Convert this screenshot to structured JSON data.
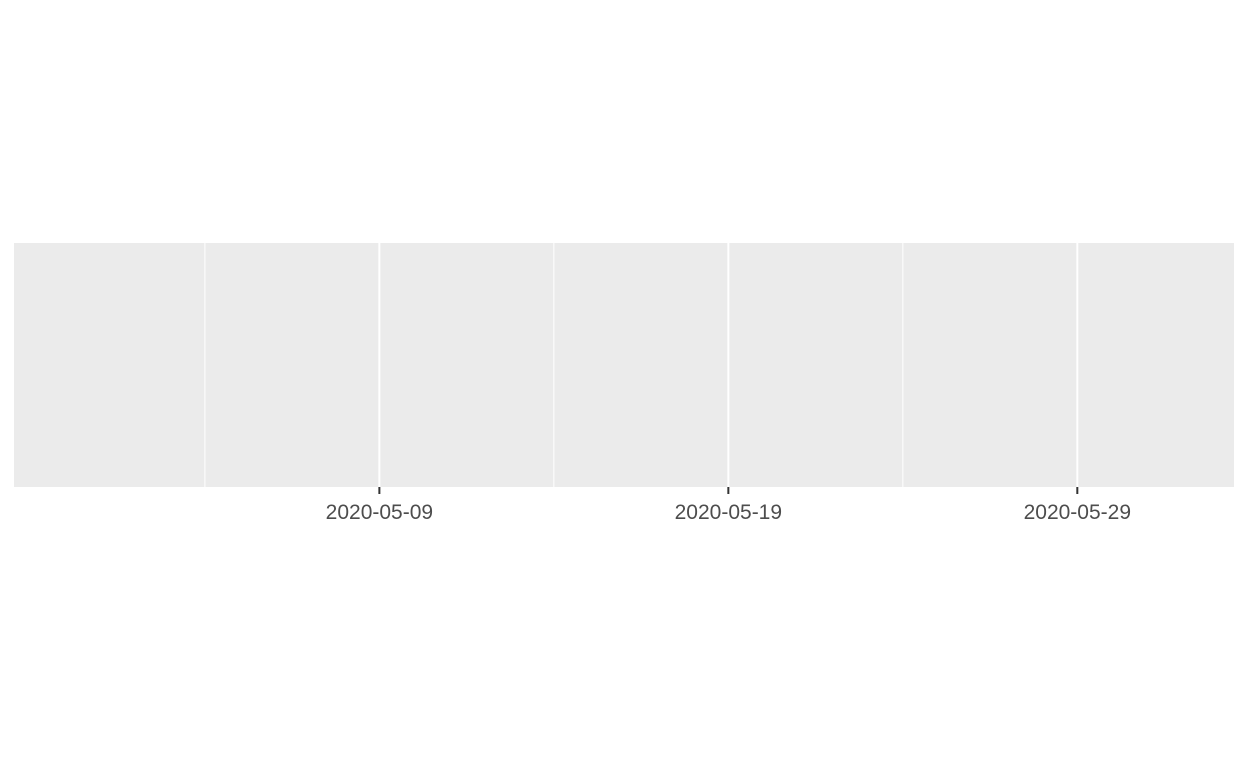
{
  "chart_data": {
    "type": "line",
    "title": "",
    "xlabel": "",
    "ylabel": "",
    "x_axis": {
      "scale": "date",
      "range": [
        "2020-04-29",
        "2020-06-02"
      ],
      "major_ticks": [
        "2020-05-09",
        "2020-05-19",
        "2020-05-29"
      ],
      "tick_labels": [
        "2020-05-09",
        "2020-05-19",
        "2020-05-29"
      ],
      "minor_gridlines": [
        "2020-05-04",
        "2020-05-14",
        "2020-05-24"
      ]
    },
    "y_axis": {
      "ticks": []
    },
    "series": [],
    "grid": true,
    "legend": "none",
    "colors": {
      "panel_background": "#ebebeb",
      "gridline": "#ffffff",
      "tick_mark": "#333333",
      "tick_label": "#4d4d4d"
    }
  }
}
